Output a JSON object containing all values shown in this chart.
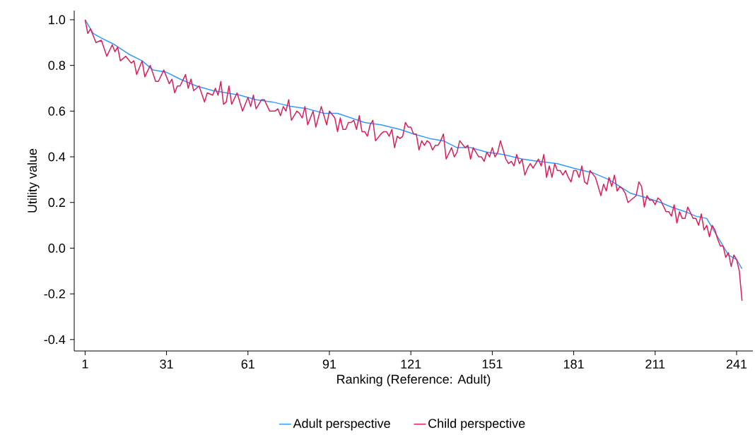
{
  "chart_data": {
    "type": "line",
    "xlabel": "Ranking (Reference: Adult)",
    "ylabel": "Utility value",
    "xlim": [
      -3,
      247
    ],
    "ylim": [
      -0.45,
      1.04
    ],
    "xticks": [
      1,
      31,
      61,
      91,
      121,
      151,
      181,
      211,
      241
    ],
    "yticks": [
      {
        "value": -0.4,
        "label": "-0.4"
      },
      {
        "value": -0.2,
        "label": "-0.2"
      },
      {
        "value": 0,
        "label": "0.0"
      },
      {
        "value": 0.2,
        "label": "0.2"
      },
      {
        "value": 0.4,
        "label": "0.4"
      },
      {
        "value": 0.6,
        "label": "0.6"
      },
      {
        "value": 0.8,
        "label": "0.8"
      },
      {
        "value": 1,
        "label": "1.0"
      }
    ],
    "grid": false,
    "legend": "bottom",
    "series": [
      {
        "name": "Adult perspective",
        "color": "#3399ff",
        "x": [
          1,
          4,
          7,
          12,
          17,
          22,
          26,
          31,
          36,
          42,
          48,
          53,
          58,
          64,
          70,
          77,
          83,
          89,
          94,
          99,
          104,
          110,
          117,
          122,
          128,
          133,
          138,
          143,
          149,
          155,
          162,
          168,
          175,
          181,
          188,
          194,
          198,
          202,
          208,
          213,
          217,
          222,
          226,
          230,
          233,
          235,
          238,
          241,
          243
        ],
        "values": [
          1.0,
          0.94,
          0.92,
          0.89,
          0.85,
          0.82,
          0.78,
          0.77,
          0.74,
          0.71,
          0.69,
          0.68,
          0.67,
          0.65,
          0.64,
          0.62,
          0.61,
          0.59,
          0.59,
          0.57,
          0.55,
          0.54,
          0.52,
          0.5,
          0.48,
          0.47,
          0.44,
          0.44,
          0.42,
          0.41,
          0.39,
          0.38,
          0.37,
          0.35,
          0.33,
          0.3,
          0.27,
          0.24,
          0.22,
          0.2,
          0.18,
          0.16,
          0.14,
          0.13,
          0.07,
          0.03,
          -0.03,
          -0.05,
          -0.09
        ]
      },
      {
        "name": "Child perspective",
        "color": "#dc1e5a",
        "x": [
          1,
          2,
          3,
          5,
          7,
          9,
          11,
          12,
          13,
          14,
          16,
          18,
          19,
          20,
          22,
          23,
          25,
          27,
          28,
          30,
          32,
          33,
          34,
          35,
          36,
          38,
          39,
          40,
          41,
          43,
          45,
          46,
          48,
          49,
          50,
          51,
          52,
          53,
          54,
          55,
          57,
          59,
          61,
          62,
          63,
          64,
          66,
          67,
          69,
          71,
          72,
          73,
          74,
          75,
          76,
          77,
          79,
          80,
          81,
          82,
          83,
          85,
          86,
          88,
          90,
          91,
          93,
          94,
          95,
          96,
          97,
          98,
          99,
          100,
          101,
          102,
          103,
          104,
          105,
          106,
          107,
          108,
          110,
          111,
          112,
          113,
          114,
          115,
          116,
          117,
          118,
          119,
          120,
          121,
          122,
          123,
          124,
          125,
          126,
          127,
          128,
          129,
          130,
          131,
          132,
          133,
          134,
          136,
          137,
          138,
          139,
          141,
          142,
          143,
          144,
          145,
          146,
          147,
          148,
          149,
          150,
          151,
          152,
          153,
          154,
          156,
          157,
          158,
          159,
          160,
          161,
          162,
          163,
          164,
          165,
          166,
          167,
          168,
          169,
          170,
          171,
          172,
          173,
          174,
          175,
          176,
          177,
          178,
          179,
          180,
          181,
          182,
          183,
          184,
          185,
          186,
          187,
          189,
          191,
          192,
          193,
          194,
          195,
          196,
          197,
          198,
          199,
          200,
          201,
          203,
          204,
          205,
          206,
          207,
          208,
          209,
          210,
          211,
          212,
          213,
          215,
          216,
          217,
          218,
          219,
          220,
          221,
          222,
          223,
          225,
          226,
          227,
          228,
          229,
          230,
          231,
          232,
          233,
          234,
          235,
          236,
          237,
          238,
          239,
          240,
          241,
          242,
          243
        ],
        "values": [
          1.0,
          0.94,
          0.96,
          0.9,
          0.91,
          0.84,
          0.89,
          0.86,
          0.88,
          0.82,
          0.84,
          0.81,
          0.82,
          0.76,
          0.82,
          0.75,
          0.8,
          0.73,
          0.73,
          0.78,
          0.72,
          0.74,
          0.68,
          0.71,
          0.71,
          0.76,
          0.7,
          0.74,
          0.69,
          0.71,
          0.64,
          0.68,
          0.67,
          0.7,
          0.67,
          0.73,
          0.63,
          0.64,
          0.71,
          0.63,
          0.68,
          0.6,
          0.66,
          0.62,
          0.67,
          0.61,
          0.65,
          0.65,
          0.6,
          0.6,
          0.61,
          0.58,
          0.62,
          0.6,
          0.65,
          0.56,
          0.6,
          0.59,
          0.57,
          0.62,
          0.54,
          0.6,
          0.53,
          0.62,
          0.54,
          0.6,
          0.57,
          0.51,
          0.57,
          0.52,
          0.52,
          0.55,
          0.55,
          0.56,
          0.52,
          0.58,
          0.51,
          0.51,
          0.49,
          0.54,
          0.56,
          0.47,
          0.5,
          0.51,
          0.51,
          0.49,
          0.52,
          0.44,
          0.49,
          0.48,
          0.49,
          0.55,
          0.53,
          0.53,
          0.5,
          0.5,
          0.43,
          0.47,
          0.45,
          0.47,
          0.46,
          0.43,
          0.45,
          0.45,
          0.47,
          0.5,
          0.39,
          0.44,
          0.4,
          0.42,
          0.47,
          0.44,
          0.45,
          0.39,
          0.44,
          0.42,
          0.4,
          0.4,
          0.38,
          0.42,
          0.4,
          0.44,
          0.4,
          0.42,
          0.47,
          0.39,
          0.37,
          0.38,
          0.36,
          0.41,
          0.37,
          0.39,
          0.32,
          0.35,
          0.37,
          0.35,
          0.37,
          0.39,
          0.36,
          0.41,
          0.31,
          0.36,
          0.31,
          0.37,
          0.34,
          0.34,
          0.32,
          0.34,
          0.31,
          0.29,
          0.34,
          0.34,
          0.31,
          0.36,
          0.29,
          0.28,
          0.34,
          0.31,
          0.23,
          0.28,
          0.25,
          0.31,
          0.27,
          0.32,
          0.25,
          0.27,
          0.26,
          0.24,
          0.2,
          0.22,
          0.23,
          0.29,
          0.27,
          0.18,
          0.23,
          0.21,
          0.21,
          0.19,
          0.22,
          0.21,
          0.16,
          0.16,
          0.14,
          0.19,
          0.11,
          0.16,
          0.13,
          0.13,
          0.18,
          0.13,
          0.13,
          0.1,
          0.15,
          0.08,
          0.1,
          0.05,
          0.1,
          0.08,
          0.04,
          0.01,
          0.01,
          -0.04,
          -0.02,
          -0.08,
          -0.03,
          -0.05,
          -0.1,
          -0.23
        ]
      }
    ]
  }
}
